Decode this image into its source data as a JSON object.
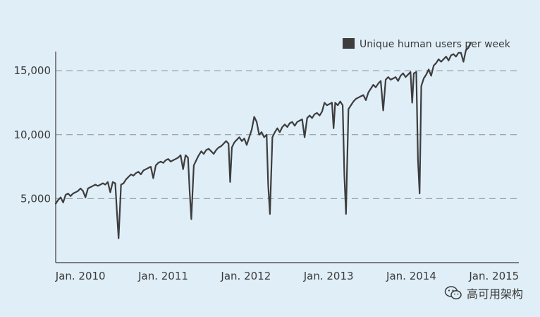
{
  "chart_data": {
    "type": "line",
    "title": "",
    "xlabel": "",
    "ylabel": "",
    "legend": {
      "label": "Unique human users per week",
      "position": "top-right",
      "color": "#3d3d3d"
    },
    "y_ticks": [
      5000,
      10000,
      15000
    ],
    "y_tick_labels": [
      "5,000",
      "10,000",
      "15,000"
    ],
    "x_tick_labels": [
      "Jan. 2010",
      "Jan. 2011",
      "Jan. 2012",
      "Jan. 2013",
      "Jan. 2014",
      "Jan. 2015"
    ],
    "x_tick_positions": [
      2010.0,
      2011.0,
      2012.0,
      2013.0,
      2014.0,
      2015.0
    ],
    "xlim": [
      2009.7,
      2015.3
    ],
    "ylim": [
      0,
      16500
    ],
    "grid": "dashed horizontal at y ticks",
    "series": [
      {
        "name": "Unique human users per week",
        "color": "#3d3d3d",
        "points": [
          [
            2009.7,
            4600
          ],
          [
            2009.73,
            4900
          ],
          [
            2009.76,
            5100
          ],
          [
            2009.79,
            4700
          ],
          [
            2009.82,
            5300
          ],
          [
            2009.85,
            5400
          ],
          [
            2009.88,
            5200
          ],
          [
            2009.91,
            5400
          ],
          [
            2009.94,
            5500
          ],
          [
            2009.97,
            5600
          ],
          [
            2010.0,
            5800
          ],
          [
            2010.03,
            5600
          ],
          [
            2010.06,
            5100
          ],
          [
            2010.09,
            5800
          ],
          [
            2010.12,
            5900
          ],
          [
            2010.15,
            6000
          ],
          [
            2010.18,
            6100
          ],
          [
            2010.21,
            6000
          ],
          [
            2010.24,
            6100
          ],
          [
            2010.27,
            6200
          ],
          [
            2010.3,
            6100
          ],
          [
            2010.33,
            6300
          ],
          [
            2010.36,
            5500
          ],
          [
            2010.39,
            6300
          ],
          [
            2010.42,
            6200
          ],
          [
            2010.44,
            4000
          ],
          [
            2010.46,
            1900
          ],
          [
            2010.49,
            6100
          ],
          [
            2010.52,
            6200
          ],
          [
            2010.55,
            6500
          ],
          [
            2010.58,
            6700
          ],
          [
            2010.61,
            6900
          ],
          [
            2010.64,
            6800
          ],
          [
            2010.67,
            7000
          ],
          [
            2010.7,
            7100
          ],
          [
            2010.73,
            6900
          ],
          [
            2010.76,
            7200
          ],
          [
            2010.79,
            7300
          ],
          [
            2010.82,
            7400
          ],
          [
            2010.85,
            7500
          ],
          [
            2010.88,
            6600
          ],
          [
            2010.91,
            7600
          ],
          [
            2010.94,
            7800
          ],
          [
            2010.97,
            7900
          ],
          [
            2011.0,
            7800
          ],
          [
            2011.03,
            8000
          ],
          [
            2011.06,
            8100
          ],
          [
            2011.09,
            7900
          ],
          [
            2011.12,
            8000
          ],
          [
            2011.15,
            8100
          ],
          [
            2011.18,
            8200
          ],
          [
            2011.21,
            8400
          ],
          [
            2011.24,
            7300
          ],
          [
            2011.27,
            8400
          ],
          [
            2011.3,
            8200
          ],
          [
            2011.32,
            5500
          ],
          [
            2011.34,
            3400
          ],
          [
            2011.37,
            7600
          ],
          [
            2011.4,
            8000
          ],
          [
            2011.43,
            8400
          ],
          [
            2011.46,
            8700
          ],
          [
            2011.49,
            8500
          ],
          [
            2011.52,
            8800
          ],
          [
            2011.55,
            8900
          ],
          [
            2011.58,
            8700
          ],
          [
            2011.61,
            8500
          ],
          [
            2011.64,
            8800
          ],
          [
            2011.67,
            9000
          ],
          [
            2011.7,
            9100
          ],
          [
            2011.73,
            9300
          ],
          [
            2011.76,
            9500
          ],
          [
            2011.79,
            9300
          ],
          [
            2011.81,
            6300
          ],
          [
            2011.83,
            9000
          ],
          [
            2011.86,
            9400
          ],
          [
            2011.89,
            9600
          ],
          [
            2011.92,
            9800
          ],
          [
            2011.95,
            9500
          ],
          [
            2011.98,
            9700
          ],
          [
            2012.01,
            9200
          ],
          [
            2012.04,
            9800
          ],
          [
            2012.07,
            10400
          ],
          [
            2012.1,
            11400
          ],
          [
            2012.13,
            11000
          ],
          [
            2012.16,
            10000
          ],
          [
            2012.19,
            10200
          ],
          [
            2012.22,
            9800
          ],
          [
            2012.25,
            10000
          ],
          [
            2012.27,
            6000
          ],
          [
            2012.29,
            3800
          ],
          [
            2012.32,
            9800
          ],
          [
            2012.35,
            10200
          ],
          [
            2012.38,
            10500
          ],
          [
            2012.41,
            10200
          ],
          [
            2012.44,
            10600
          ],
          [
            2012.47,
            10800
          ],
          [
            2012.5,
            10600
          ],
          [
            2012.53,
            10900
          ],
          [
            2012.56,
            11000
          ],
          [
            2012.59,
            10700
          ],
          [
            2012.62,
            11000
          ],
          [
            2012.65,
            11100
          ],
          [
            2012.68,
            11200
          ],
          [
            2012.71,
            9800
          ],
          [
            2012.74,
            11300
          ],
          [
            2012.77,
            11500
          ],
          [
            2012.8,
            11300
          ],
          [
            2012.83,
            11600
          ],
          [
            2012.86,
            11700
          ],
          [
            2012.89,
            11500
          ],
          [
            2012.92,
            11800
          ],
          [
            2012.95,
            12500
          ],
          [
            2012.98,
            12300
          ],
          [
            2013.01,
            12400
          ],
          [
            2013.04,
            12500
          ],
          [
            2013.06,
            10500
          ],
          [
            2013.08,
            12500
          ],
          [
            2013.11,
            12300
          ],
          [
            2013.14,
            12600
          ],
          [
            2013.17,
            12300
          ],
          [
            2013.19,
            6800
          ],
          [
            2013.21,
            3800
          ],
          [
            2013.24,
            12000
          ],
          [
            2013.27,
            12300
          ],
          [
            2013.3,
            12600
          ],
          [
            2013.33,
            12800
          ],
          [
            2013.36,
            12900
          ],
          [
            2013.39,
            13000
          ],
          [
            2013.42,
            13100
          ],
          [
            2013.45,
            12700
          ],
          [
            2013.48,
            13300
          ],
          [
            2013.51,
            13600
          ],
          [
            2013.54,
            13900
          ],
          [
            2013.57,
            13700
          ],
          [
            2013.6,
            14000
          ],
          [
            2013.63,
            14200
          ],
          [
            2013.66,
            11900
          ],
          [
            2013.69,
            14300
          ],
          [
            2013.72,
            14500
          ],
          [
            2013.75,
            14300
          ],
          [
            2013.78,
            14400
          ],
          [
            2013.81,
            14500
          ],
          [
            2013.84,
            14200
          ],
          [
            2013.87,
            14600
          ],
          [
            2013.9,
            14800
          ],
          [
            2013.93,
            14500
          ],
          [
            2013.96,
            14700
          ],
          [
            2013.99,
            14900
          ],
          [
            2014.01,
            12500
          ],
          [
            2014.03,
            14800
          ],
          [
            2014.06,
            14900
          ],
          [
            2014.08,
            8000
          ],
          [
            2014.1,
            5400
          ],
          [
            2014.12,
            13800
          ],
          [
            2014.15,
            14400
          ],
          [
            2014.18,
            14700
          ],
          [
            2014.21,
            15100
          ],
          [
            2014.24,
            14600
          ],
          [
            2014.27,
            15400
          ],
          [
            2014.3,
            15600
          ],
          [
            2014.33,
            15900
          ],
          [
            2014.36,
            15700
          ],
          [
            2014.39,
            15900
          ],
          [
            2014.42,
            16100
          ],
          [
            2014.45,
            15800
          ],
          [
            2014.48,
            16200
          ],
          [
            2014.51,
            16300
          ],
          [
            2014.54,
            16100
          ],
          [
            2014.57,
            16400
          ],
          [
            2014.6,
            16400
          ],
          [
            2014.63,
            15700
          ],
          [
            2014.66,
            16600
          ],
          [
            2014.69,
            16800
          ],
          [
            2014.72,
            17200
          ]
        ]
      }
    ]
  },
  "watermark": {
    "text": "高可用架构",
    "icon": "wechat-icon"
  }
}
